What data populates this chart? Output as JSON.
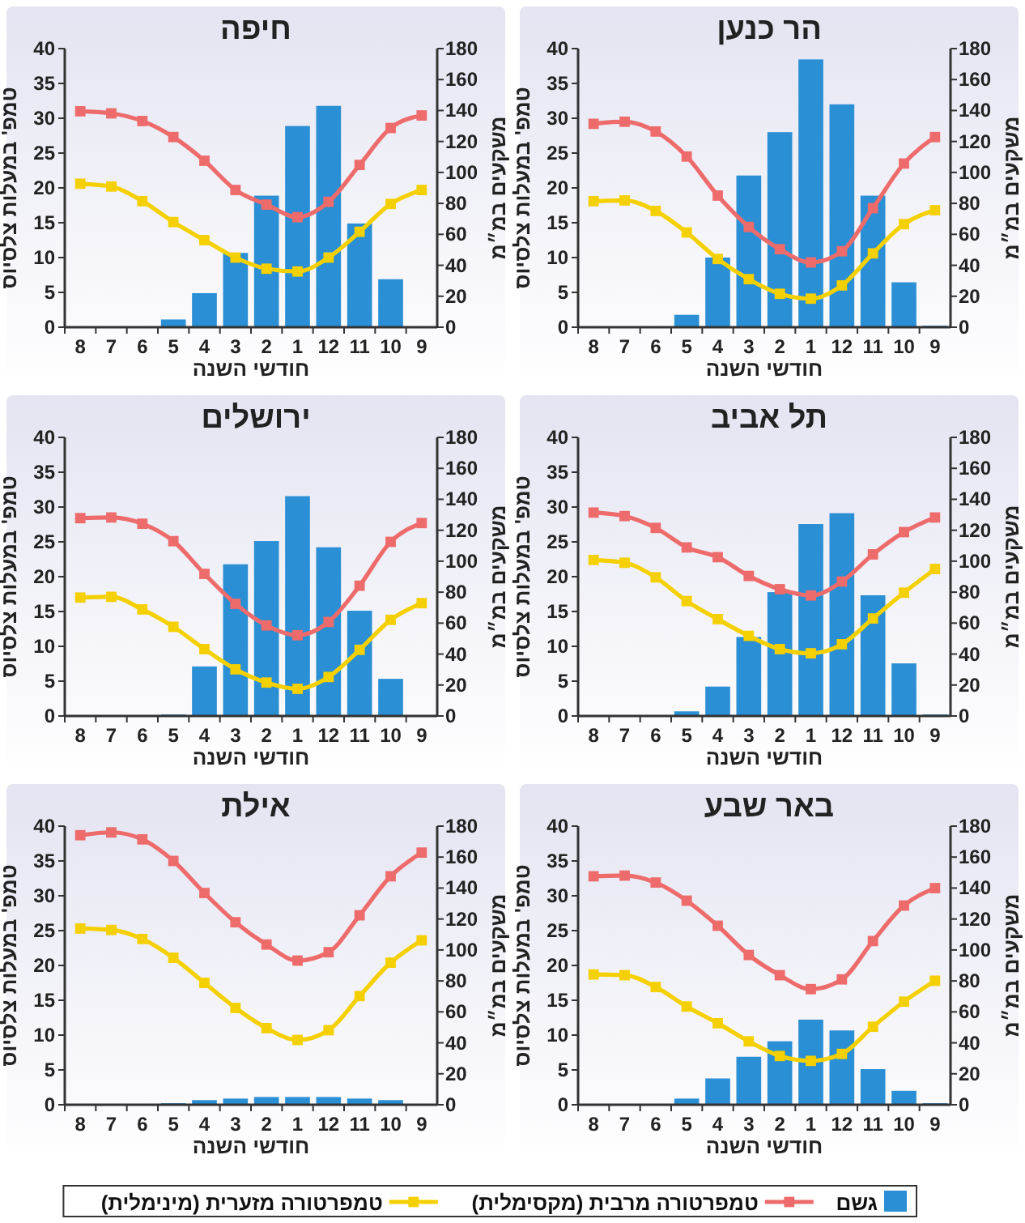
{
  "chart_data": [
    {
      "type": "bar",
      "title": "חיפה",
      "xlabel": "חודשי השנה",
      "ylabel": "טמפ' במעלות צלסיוס",
      "y2label": "משקעים במ״מ",
      "categories": [
        "8",
        "7",
        "6",
        "5",
        "4",
        "3",
        "2",
        "1",
        "12",
        "11",
        "10",
        "9"
      ],
      "ylim": [
        0,
        40
      ],
      "yticks": [
        0,
        5,
        10,
        15,
        20,
        25,
        30,
        35,
        40
      ],
      "y2lim": [
        0,
        180
      ],
      "y2ticks": [
        0,
        20,
        40,
        60,
        80,
        100,
        120,
        140,
        160,
        180
      ],
      "grid": false,
      "marker": "square",
      "series": [
        {
          "axis": "y2",
          "color": "#2a8fd4",
          "values": [
            0,
            0,
            0,
            5,
            22,
            48,
            85,
            130,
            143,
            67,
            31,
            0
          ]
        },
        {
          "type": "line",
          "color": "#ee6b6b",
          "values": [
            31,
            30.7,
            29.6,
            27.3,
            23.9,
            19.7,
            17.6,
            15.8,
            18,
            23.3,
            28.6,
            30.4
          ]
        },
        {
          "type": "line",
          "color": "#f5d000",
          "values": [
            20.6,
            20.2,
            18.1,
            15.1,
            12.5,
            10,
            8.4,
            8,
            10,
            13.7,
            17.7,
            19.7
          ]
        }
      ]
    },
    {
      "type": "bar",
      "title": "הר כנען",
      "xlabel": "חודשי השנה",
      "ylabel": "טמפ' במעלות צלסיוס",
      "y2label": "משקעים במ״מ",
      "categories": [
        "8",
        "7",
        "6",
        "5",
        "4",
        "3",
        "2",
        "1",
        "12",
        "11",
        "10",
        "9"
      ],
      "ylim": [
        0,
        40
      ],
      "yticks": [
        0,
        5,
        10,
        15,
        20,
        25,
        30,
        35,
        40
      ],
      "y2lim": [
        0,
        180
      ],
      "y2ticks": [
        0,
        20,
        40,
        60,
        80,
        100,
        120,
        140,
        160,
        180
      ],
      "grid": false,
      "marker": "square",
      "series": [
        {
          "axis": "y2",
          "color": "#2a8fd4",
          "values": [
            0,
            0,
            0,
            8,
            45,
            98,
            126,
            173,
            144,
            85,
            29,
            1
          ]
        },
        {
          "type": "line",
          "color": "#ee6b6b",
          "values": [
            29.2,
            29.5,
            28.1,
            24.5,
            18.9,
            14.4,
            11.2,
            9.3,
            10.9,
            17.1,
            23.5,
            27.3
          ]
        },
        {
          "type": "line",
          "color": "#f5d000",
          "values": [
            18.1,
            18.2,
            16.7,
            13.6,
            9.8,
            6.9,
            4.8,
            4.1,
            6,
            10.6,
            14.8,
            16.8
          ]
        }
      ]
    },
    {
      "type": "bar",
      "title": "ירושלים",
      "xlabel": "חודשי השנה",
      "ylabel": "טמפ' במעלות צלסיוס",
      "y2label": "משקעים במ״מ",
      "categories": [
        "8",
        "7",
        "6",
        "5",
        "4",
        "3",
        "2",
        "1",
        "12",
        "11",
        "10",
        "9"
      ],
      "ylim": [
        0,
        40
      ],
      "yticks": [
        0,
        5,
        10,
        15,
        20,
        25,
        30,
        35,
        40
      ],
      "y2lim": [
        0,
        180
      ],
      "y2ticks": [
        0,
        20,
        40,
        60,
        80,
        100,
        120,
        140,
        160,
        180
      ],
      "grid": false,
      "marker": "square",
      "series": [
        {
          "axis": "y2",
          "color": "#2a8fd4",
          "values": [
            0,
            0,
            0,
            1,
            32,
            98,
            113,
            142,
            109,
            68,
            24,
            0
          ]
        },
        {
          "type": "line",
          "color": "#ee6b6b",
          "values": [
            28.4,
            28.5,
            27.6,
            25.1,
            20.4,
            16.1,
            13,
            11.6,
            13.5,
            18.7,
            25,
            27.7
          ]
        },
        {
          "type": "line",
          "color": "#f5d000",
          "values": [
            17,
            17.1,
            15.3,
            12.8,
            9.6,
            6.7,
            4.8,
            3.9,
            5.6,
            9.5,
            13.8,
            16.2
          ]
        }
      ]
    },
    {
      "type": "bar",
      "title": "תל אביב",
      "xlabel": "חודשי השנה",
      "ylabel": "טמפ' במעלות צלסיוס",
      "y2label": "משקעים במ״מ",
      "categories": [
        "8",
        "7",
        "6",
        "5",
        "4",
        "3",
        "2",
        "1",
        "12",
        "11",
        "10",
        "9"
      ],
      "ylim": [
        0,
        40
      ],
      "yticks": [
        0,
        5,
        10,
        15,
        20,
        25,
        30,
        35,
        40
      ],
      "y2lim": [
        0,
        180
      ],
      "y2ticks": [
        0,
        20,
        40,
        60,
        80,
        100,
        120,
        140,
        160,
        180
      ],
      "grid": false,
      "marker": "square",
      "series": [
        {
          "axis": "y2",
          "color": "#2a8fd4",
          "values": [
            0,
            0,
            0,
            3,
            19,
            51,
            80,
            124,
            131,
            78,
            34,
            1
          ]
        },
        {
          "type": "line",
          "color": "#ee6b6b",
          "values": [
            29.2,
            28.7,
            27,
            24.2,
            22.8,
            20.1,
            18.2,
            17.3,
            19.3,
            23.2,
            26.4,
            28.5
          ]
        },
        {
          "type": "line",
          "color": "#f5d000",
          "values": [
            22.4,
            22,
            19.9,
            16.5,
            13.9,
            11.5,
            9.6,
            9,
            10.3,
            14,
            17.7,
            21.1
          ]
        }
      ]
    },
    {
      "type": "bar",
      "title": "אילת",
      "xlabel": "חודשי השנה",
      "ylabel": "טמפ' במעלות צלסיוס",
      "y2label": "משקעים במ״מ",
      "categories": [
        "8",
        "7",
        "6",
        "5",
        "4",
        "3",
        "2",
        "1",
        "12",
        "11",
        "10",
        "9"
      ],
      "ylim": [
        0,
        40
      ],
      "yticks": [
        0,
        5,
        10,
        15,
        20,
        25,
        30,
        35,
        40
      ],
      "y2lim": [
        0,
        180
      ],
      "y2ticks": [
        0,
        20,
        40,
        60,
        80,
        100,
        120,
        140,
        160,
        180
      ],
      "grid": false,
      "marker": "square",
      "series": [
        {
          "axis": "y2",
          "color": "#2a8fd4",
          "values": [
            0,
            0,
            0,
            1,
            3,
            4,
            5,
            5,
            5,
            4,
            3,
            0
          ]
        },
        {
          "type": "line",
          "color": "#ee6b6b",
          "values": [
            38.7,
            39.1,
            38.1,
            35,
            30.4,
            26.2,
            23,
            20.7,
            21.9,
            27.2,
            32.8,
            36.2
          ]
        },
        {
          "type": "line",
          "color": "#f5d000",
          "values": [
            25.3,
            25.1,
            23.8,
            21.1,
            17.5,
            13.9,
            11,
            9.3,
            10.7,
            15.6,
            20.4,
            23.6
          ]
        }
      ]
    },
    {
      "type": "bar",
      "title": "באר שבע",
      "xlabel": "חודשי השנה",
      "ylabel": "טמפ' במעלות צלסיוס",
      "y2label": "משקעים במ״מ",
      "categories": [
        "8",
        "7",
        "6",
        "5",
        "4",
        "3",
        "2",
        "1",
        "12",
        "11",
        "10",
        "9"
      ],
      "ylim": [
        0,
        40
      ],
      "yticks": [
        0,
        5,
        10,
        15,
        20,
        25,
        30,
        35,
        40
      ],
      "y2lim": [
        0,
        180
      ],
      "y2ticks": [
        0,
        20,
        40,
        60,
        80,
        100,
        120,
        140,
        160,
        180
      ],
      "grid": false,
      "marker": "square",
      "legend": "bottom",
      "series": [
        {
          "name": "גשם",
          "axis": "y2",
          "color": "#2a8fd4",
          "values": [
            0,
            0,
            0,
            4,
            17,
            31,
            41,
            55,
            48,
            23,
            9,
            1
          ]
        },
        {
          "name": "טמפרטורה מרבית (מקסימלית)",
          "type": "line",
          "color": "#ee6b6b",
          "values": [
            32.8,
            32.9,
            31.9,
            29.3,
            25.7,
            21.5,
            18.6,
            16.6,
            18,
            23.5,
            28.6,
            31.1
          ]
        },
        {
          "name": "טמפרטורה מזערית (מינימלית)",
          "type": "line",
          "color": "#f5d000",
          "values": [
            18.7,
            18.6,
            16.9,
            14.1,
            11.7,
            9.1,
            7,
            6.3,
            7.3,
            11.2,
            14.8,
            17.8
          ]
        }
      ]
    }
  ]
}
